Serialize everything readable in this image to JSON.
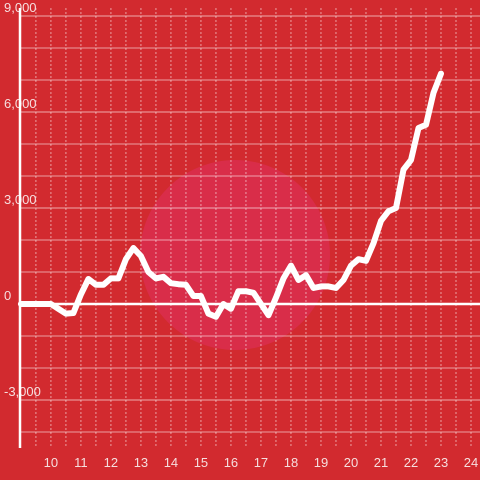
{
  "chart_data": {
    "type": "line",
    "x": [
      9,
      9.25,
      9.5,
      9.75,
      10,
      10.25,
      10.5,
      10.75,
      11,
      11.25,
      11.5,
      11.75,
      12,
      12.25,
      12.5,
      12.75,
      13,
      13.25,
      13.5,
      13.75,
      14,
      14.25,
      14.5,
      14.75,
      15,
      15.25,
      15.5,
      15.75,
      16,
      16.25,
      16.5,
      16.75,
      17,
      17.25,
      17.5,
      17.75,
      18,
      18.25,
      18.5,
      18.75,
      19,
      19.25,
      19.5,
      19.75,
      20,
      20.25,
      20.5,
      20.75,
      21,
      21.25,
      21.5,
      21.75,
      22,
      22.25,
      22.5,
      22.75,
      23
    ],
    "values": [
      0,
      0,
      0,
      0,
      0,
      -150,
      -300,
      -280,
      300,
      780,
      600,
      600,
      800,
      800,
      1400,
      1750,
      1500,
      1000,
      800,
      850,
      650,
      620,
      600,
      250,
      250,
      -300,
      -400,
      0,
      -150,
      400,
      400,
      350,
      0,
      -350,
      200,
      800,
      1200,
      750,
      900,
      500,
      550,
      550,
      500,
      750,
      1200,
      1400,
      1350,
      1900,
      2600,
      2900,
      3000,
      4200,
      4500,
      5500,
      5600,
      6600,
      7200
    ],
    "color": "#ffffff",
    "xlim": [
      8.97,
      24.3
    ],
    "xticks": [
      10,
      11,
      12,
      13,
      14,
      15,
      16,
      17,
      18,
      19,
      20,
      21,
      22,
      23,
      24
    ],
    "x_minor_ticks": [
      9.5,
      10.5,
      11.5,
      12.5,
      13.5,
      14.5,
      15.5,
      16.5,
      17.5,
      18.5,
      19.5,
      20.5,
      21.5,
      22.5,
      23.5
    ],
    "ylim": [
      -4500,
      9250
    ],
    "yticks": [
      {
        "value": 9000,
        "label": "9,000"
      },
      {
        "value": 6000,
        "label": "6,000"
      },
      {
        "value": 3000,
        "label": "3,000"
      },
      0,
      {
        "value": -3000,
        "label": "-3,000"
      }
    ],
    "y_minor_ticks": [
      8000,
      7000,
      5000,
      4000,
      2000,
      1000,
      -1000,
      -2000,
      -4000
    ],
    "grid": true
  }
}
